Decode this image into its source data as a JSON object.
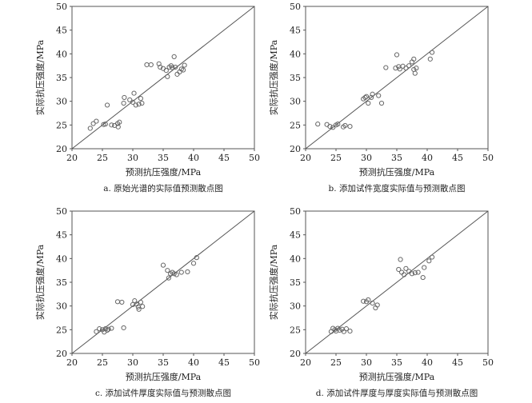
{
  "chart_data": [
    {
      "type": "scatter",
      "xlabel": "预测抗压强度/MPa",
      "ylabel": "实际抗压强度/MPa",
      "caption": "a. 原始光谱的实际值预测散点图",
      "xlim": [
        20,
        50
      ],
      "ylim": [
        20,
        50
      ],
      "xticks": [
        "20",
        "25",
        "30",
        "35",
        "40",
        "45",
        "50"
      ],
      "yticks": [
        "20",
        "25",
        "30",
        "35",
        "40",
        "45",
        "50"
      ],
      "reference_line": "y = x",
      "points": [
        [
          23.0,
          24.3
        ],
        [
          23.5,
          25.3
        ],
        [
          24.0,
          25.8
        ],
        [
          25.2,
          25.1
        ],
        [
          25.5,
          25.2
        ],
        [
          25.8,
          29.2
        ],
        [
          26.5,
          25.0
        ],
        [
          27.0,
          24.9
        ],
        [
          27.5,
          25.3
        ],
        [
          27.8,
          25.6
        ],
        [
          27.6,
          24.6
        ],
        [
          28.5,
          29.6
        ],
        [
          28.6,
          30.8
        ],
        [
          29.5,
          30.3
        ],
        [
          30.0,
          29.8
        ],
        [
          30.2,
          31.7
        ],
        [
          30.5,
          29.2
        ],
        [
          31.0,
          29.4
        ],
        [
          31.3,
          30.6
        ],
        [
          31.5,
          29.6
        ],
        [
          32.3,
          37.7
        ],
        [
          33.0,
          37.7
        ],
        [
          34.3,
          37.9
        ],
        [
          34.5,
          37.2
        ],
        [
          35.0,
          36.9
        ],
        [
          35.5,
          36.5
        ],
        [
          35.7,
          35.2
        ],
        [
          36.0,
          37.2
        ],
        [
          36.3,
          37.5
        ],
        [
          36.5,
          37.1
        ],
        [
          36.8,
          39.4
        ],
        [
          37.0,
          37.2
        ],
        [
          37.3,
          35.7
        ],
        [
          37.7,
          36.2
        ],
        [
          38.0,
          36.8
        ],
        [
          38.3,
          36.6
        ],
        [
          38.5,
          37.6
        ]
      ]
    },
    {
      "type": "scatter",
      "xlabel": "预测抗压强度/MPa",
      "ylabel": "实际抗压强度/MPa",
      "caption": "b. 添加试件宽度实际值与预测散点图",
      "xlim": [
        20,
        50
      ],
      "ylim": [
        20,
        50
      ],
      "xticks": [
        "20",
        "25",
        "30",
        "35",
        "40",
        "45",
        "50"
      ],
      "yticks": [
        "20",
        "25",
        "30",
        "35",
        "40",
        "45",
        "50"
      ],
      "reference_line": "y = x",
      "points": [
        [
          22.0,
          25.2
        ],
        [
          23.5,
          25.1
        ],
        [
          24.0,
          24.7
        ],
        [
          24.5,
          24.5
        ],
        [
          25.0,
          25.0
        ],
        [
          25.3,
          25.2
        ],
        [
          26.2,
          24.6
        ],
        [
          26.5,
          24.9
        ],
        [
          27.3,
          24.7
        ],
        [
          29.5,
          30.5
        ],
        [
          29.8,
          30.8
        ],
        [
          30.0,
          31.0
        ],
        [
          30.3,
          29.6
        ],
        [
          30.8,
          30.8
        ],
        [
          31.0,
          31.5
        ],
        [
          32.0,
          31.2
        ],
        [
          32.5,
          29.6
        ],
        [
          33.2,
          37.1
        ],
        [
          34.8,
          37.0
        ],
        [
          35.0,
          39.8
        ],
        [
          35.3,
          37.3
        ],
        [
          35.5,
          36.8
        ],
        [
          36.0,
          37.4
        ],
        [
          36.5,
          37.0
        ],
        [
          37.0,
          37.5
        ],
        [
          37.5,
          38.3
        ],
        [
          37.8,
          36.7
        ],
        [
          38.0,
          35.9
        ],
        [
          38.2,
          37.0
        ],
        [
          37.8,
          38.9
        ],
        [
          40.5,
          38.9
        ],
        [
          40.8,
          40.3
        ]
      ]
    },
    {
      "type": "scatter",
      "xlabel": "预测抗压强度/MPa",
      "ylabel": "实际抗压强度/MPa",
      "caption": "c. 添加试件厚度实际值与预测散点图",
      "xlim": [
        20,
        50
      ],
      "ylim": [
        20,
        50
      ],
      "xticks": [
        "20",
        "25",
        "30",
        "35",
        "40",
        "45",
        "50"
      ],
      "yticks": [
        "20",
        "25",
        "30",
        "35",
        "40",
        "45",
        "50"
      ],
      "reference_line": "y = x",
      "points": [
        [
          24.0,
          24.6
        ],
        [
          24.5,
          25.2
        ],
        [
          25.0,
          25.0
        ],
        [
          25.3,
          24.5
        ],
        [
          25.5,
          25.2
        ],
        [
          25.8,
          24.9
        ],
        [
          26.0,
          25.1
        ],
        [
          26.5,
          25.3
        ],
        [
          27.5,
          30.9
        ],
        [
          28.2,
          30.8
        ],
        [
          28.5,
          25.4
        ],
        [
          30.0,
          30.3
        ],
        [
          30.3,
          31.1
        ],
        [
          30.6,
          30.4
        ],
        [
          30.9,
          29.8
        ],
        [
          31.0,
          29.3
        ],
        [
          31.3,
          30.8
        ],
        [
          31.6,
          29.9
        ],
        [
          35.0,
          38.6
        ],
        [
          35.7,
          37.5
        ],
        [
          35.9,
          35.9
        ],
        [
          36.2,
          36.8
        ],
        [
          36.5,
          37.1
        ],
        [
          36.8,
          36.8
        ],
        [
          37.2,
          36.6
        ],
        [
          38.0,
          37.1
        ],
        [
          39.0,
          37.2
        ],
        [
          40.0,
          39.0
        ],
        [
          40.5,
          40.2
        ]
      ]
    },
    {
      "type": "scatter",
      "xlabel": "预测抗压强度/MPa",
      "ylabel": "实际抗压强度/MPa",
      "caption": "d. 添加试件厚度与厚度实际值与预测散点图",
      "xlim": [
        20,
        50
      ],
      "ylim": [
        20,
        50
      ],
      "xticks": [
        "20",
        "25",
        "30",
        "35",
        "40",
        "45",
        "50"
      ],
      "yticks": [
        "20",
        "25",
        "30",
        "35",
        "40",
        "45",
        "50"
      ],
      "reference_line": "y = x",
      "points": [
        [
          24.2,
          24.6
        ],
        [
          24.5,
          25.3
        ],
        [
          24.8,
          25.0
        ],
        [
          25.0,
          24.7
        ],
        [
          25.3,
          25.3
        ],
        [
          25.6,
          24.9
        ],
        [
          26.0,
          25.1
        ],
        [
          26.3,
          24.6
        ],
        [
          26.7,
          25.2
        ],
        [
          27.3,
          24.7
        ],
        [
          29.5,
          31.0
        ],
        [
          30.0,
          30.9
        ],
        [
          30.3,
          31.3
        ],
        [
          31.0,
          30.6
        ],
        [
          31.5,
          29.6
        ],
        [
          31.8,
          30.2
        ],
        [
          35.3,
          37.7
        ],
        [
          35.6,
          39.8
        ],
        [
          35.8,
          37.1
        ],
        [
          36.2,
          36.6
        ],
        [
          36.5,
          37.9
        ],
        [
          37.0,
          37.3
        ],
        [
          37.5,
          36.8
        ],
        [
          38.0,
          37.0
        ],
        [
          38.5,
          37.1
        ],
        [
          39.3,
          36.0
        ],
        [
          39.5,
          38.1
        ],
        [
          40.3,
          39.5
        ],
        [
          40.8,
          40.3
        ]
      ]
    }
  ]
}
